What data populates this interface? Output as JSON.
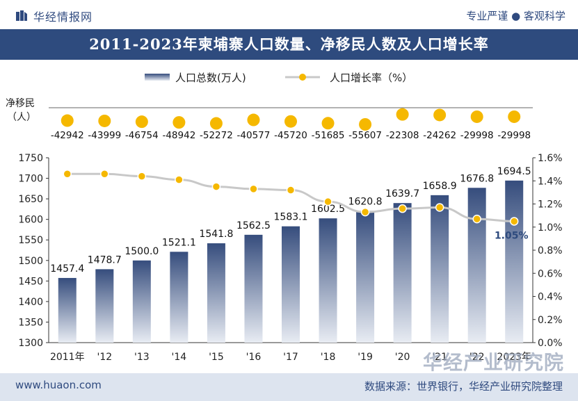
{
  "header": {
    "brand": "华经情报网",
    "slogan": "专业严谨 ● 客观科学",
    "title": "2011-2023年柬埔寨人口数量、净移民人数及人口增长率"
  },
  "footer": {
    "site": "www.huaon.com",
    "source": "数据来源：世界银行，华经产业研究院整理"
  },
  "watermark": "华经产业研究院",
  "colors": {
    "title_bg": "#2e4b7e",
    "bar_top": "#364d7d",
    "bar_bottom": "#e8ecf3",
    "line": "#c8c8c8",
    "marker": "#f5b800",
    "footer_bg": "#dde4ef"
  },
  "chart_data": {
    "type": "bar",
    "categories": [
      "2011年",
      "'12",
      "'13",
      "'14",
      "'15",
      "'16",
      "'17",
      "'18",
      "'19",
      "'20",
      "'21",
      "'22",
      "2023年"
    ],
    "legend": {
      "placement": "top",
      "items": [
        "人口总数(万人)",
        "人口增长率（%）"
      ]
    },
    "series": [
      {
        "name": "人口总数(万人)",
        "type": "bar",
        "axis": "left",
        "values": [
          1457.4,
          1478.7,
          1500.0,
          1521.1,
          1541.8,
          1562.5,
          1583.1,
          1602.5,
          1620.8,
          1639.7,
          1658.9,
          1676.8,
          1694.5
        ],
        "labels": [
          "1457.4",
          "1478.7",
          "1500.0",
          "1521.1",
          "1541.8",
          "1562.5",
          "1583.1",
          "1602.5",
          "1620.8",
          "1639.7",
          "1658.9",
          "1676.8",
          "1694.5"
        ]
      },
      {
        "name": "人口增长率（%）",
        "type": "line",
        "axis": "right",
        "values": [
          1.46,
          1.46,
          1.44,
          1.41,
          1.35,
          1.33,
          1.32,
          1.22,
          1.13,
          1.16,
          1.17,
          1.07,
          1.05
        ],
        "labels": [
          "",
          "",
          "",
          "",
          "",
          "",
          "",
          "",
          "",
          "",
          "",
          "",
          "1.05%"
        ]
      },
      {
        "name": "净移民（人）",
        "type": "dot",
        "values": [
          -42942,
          -43999,
          -46754,
          -48942,
          -52272,
          -40577,
          -45720,
          -51685,
          -55607,
          -22308,
          -24262,
          -29998,
          -29998
        ],
        "labels": [
          "-42942",
          "-43999",
          "-46754",
          "-48942",
          "-52272",
          "-40577",
          "-45720",
          "-51685",
          "-55607",
          "-22308",
          "-24262",
          "-29998",
          "-29998"
        ]
      }
    ],
    "migration_axis_label": [
      "净移民",
      "（人）"
    ],
    "left_axis": {
      "min": 1300,
      "max": 1750,
      "ticks": [
        "1300",
        "1350",
        "1400",
        "1450",
        "1500",
        "1550",
        "1600",
        "1650",
        "1700",
        "1750"
      ]
    },
    "right_axis": {
      "min": 0,
      "max": 1.6,
      "ticks": [
        "0.0%",
        "0.2%",
        "0.4%",
        "0.6%",
        "0.8%",
        "1.0%",
        "1.2%",
        "1.4%",
        "1.6%"
      ]
    },
    "grid": false
  }
}
